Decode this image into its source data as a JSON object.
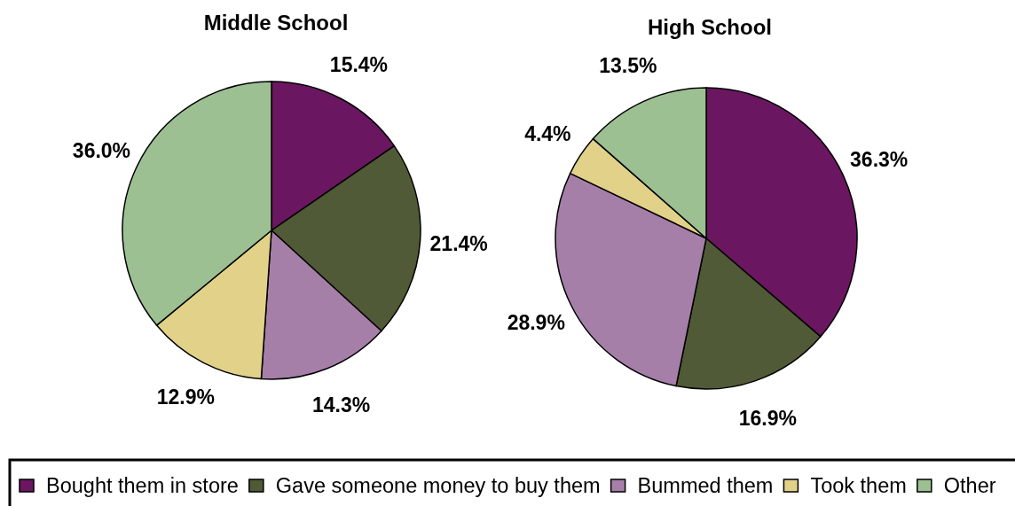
{
  "chart_data": [
    {
      "type": "pie",
      "title": "Middle School",
      "categories": [
        "Bought them in store",
        "Gave someone money to buy them",
        "Bummed them",
        "Took them",
        "Other"
      ],
      "values": [
        15.4,
        21.4,
        14.3,
        12.9,
        36.0
      ],
      "value_labels": [
        "15.4%",
        "21.4%",
        "14.3%",
        "12.9%",
        "36.0%"
      ],
      "colors": [
        "#6b1660",
        "#505a36",
        "#a67fa9",
        "#e2d189",
        "#9dc093"
      ],
      "legend": "bottom"
    },
    {
      "type": "pie",
      "title": "High School",
      "values": [
        36.3,
        16.9,
        28.9,
        4.4,
        13.5
      ],
      "value_labels": [
        "36.3%",
        "16.9%",
        "28.9%",
        "4.4%",
        "13.5%"
      ],
      "colors": [
        "#6b1660",
        "#505a36",
        "#a67fa9",
        "#e2d189",
        "#9dc093"
      ]
    }
  ]
}
